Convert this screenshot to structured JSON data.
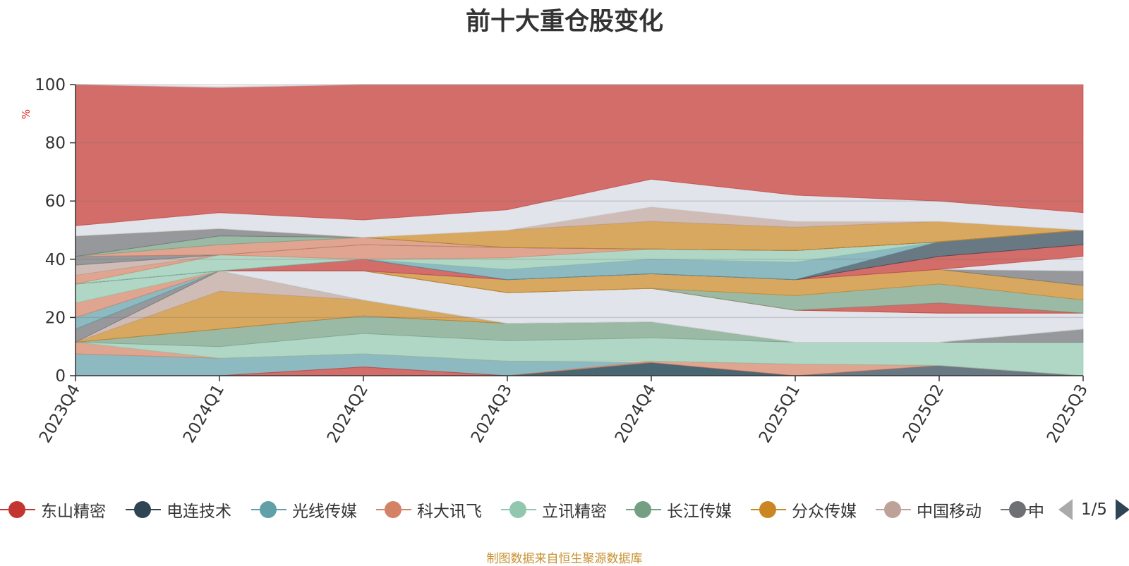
{
  "title": "前十大重仓股变化",
  "footer": "制图数据来自恒生聚源数据库",
  "pager": {
    "text": "1/5"
  },
  "legend": [
    {
      "name": "东山精密",
      "color": "#c23531"
    },
    {
      "name": "电连技术",
      "color": "#2f4554"
    },
    {
      "name": "光线传媒",
      "color": "#61a0a8"
    },
    {
      "name": "科大讯飞",
      "color": "#d48265"
    },
    {
      "name": "立讯精密",
      "color": "#91c7ae"
    },
    {
      "name": "长江传媒",
      "color": "#749f83"
    },
    {
      "name": "分众传媒",
      "color": "#ca8622"
    },
    {
      "name": "中国移动",
      "color": "#bda29a"
    },
    {
      "name": "中",
      "color": "#6e7074"
    }
  ],
  "chart_data": {
    "type": "area",
    "stacked": true,
    "title": "前十大重仓股变化",
    "ylabel": "%",
    "ylim": [
      0,
      100
    ],
    "yticks": [
      0,
      20,
      40,
      60,
      80,
      100
    ],
    "categories": [
      "2023Q4",
      "2024Q1",
      "2024Q2",
      "2024Q3",
      "2024Q4",
      "2025Q1",
      "2025Q2",
      "2025Q3"
    ],
    "bands": [
      {
        "color": "#61a0a8",
        "bottom": [
          0,
          0,
          3,
          0,
          0,
          0,
          0,
          0
        ],
        "top": [
          7.5,
          6,
          7.5,
          5,
          4.5,
          0,
          0,
          0
        ]
      },
      {
        "color": "#c23531",
        "bottom": [
          0,
          0,
          0,
          0,
          0,
          0,
          0,
          0
        ],
        "top": [
          0,
          0,
          3,
          0,
          0,
          0,
          0,
          0
        ]
      },
      {
        "color": "#2f4554",
        "bottom": [
          0,
          0,
          0,
          0,
          0,
          0,
          0,
          0
        ],
        "top": [
          0,
          0,
          0,
          0,
          4.5,
          0,
          3.5,
          0
        ]
      },
      {
        "color": "#d48265",
        "bottom": [
          0,
          0,
          0,
          0,
          4.5,
          0,
          3.5,
          0
        ],
        "top": [
          0,
          0,
          0,
          0,
          5,
          4,
          3.5,
          0
        ]
      },
      {
        "color": "#d48265",
        "bottom": [
          7.5,
          6,
          7.5,
          5,
          5,
          4,
          3.5,
          0
        ],
        "top": [
          11.5,
          6,
          7.5,
          5,
          5,
          4,
          3.5,
          0
        ]
      },
      {
        "color": "#91c7ae",
        "bottom": [
          11.5,
          6,
          7.5,
          5,
          5,
          4,
          3.5,
          0
        ],
        "top": [
          11.5,
          10,
          14.5,
          12,
          13,
          11.5,
          11.5,
          11.5
        ]
      },
      {
        "color": "#749f83",
        "bottom": [
          11.5,
          10,
          14.5,
          12,
          13,
          11.5,
          11.5,
          11.5
        ],
        "top": [
          11.5,
          16,
          20.5,
          18,
          18.5,
          11.5,
          11.5,
          11.5
        ]
      },
      {
        "color": "#6e7074",
        "bottom": [
          11.5,
          16,
          20.5,
          18,
          18.5,
          11.5,
          11.5,
          11.5
        ],
        "top": [
          11.5,
          16,
          20.5,
          18,
          18.5,
          11.5,
          11.5,
          16
        ]
      },
      {
        "color": "#ca8622",
        "bottom": [
          11.5,
          16,
          20.5,
          18,
          18.5,
          11.5,
          11.5,
          16
        ],
        "top": [
          11.5,
          29,
          26,
          18,
          18.5,
          11.5,
          11.5,
          16
        ]
      },
      {
        "color": "#bda29a",
        "bottom": [
          11.5,
          29,
          26,
          18,
          18.5,
          11.5,
          11.5,
          16
        ],
        "top": [
          11.5,
          36,
          26,
          18,
          18.5,
          11.5,
          11.5,
          16
        ]
      },
      {
        "color": "#6e7074",
        "bottom": [
          11.5,
          36,
          26,
          18,
          18.5,
          11.5,
          11.5,
          16
        ],
        "top": [
          16,
          36,
          26,
          18,
          18.5,
          11.5,
          11.5,
          16
        ]
      },
      {
        "color": "#61a0a8",
        "bottom": [
          16,
          36,
          26,
          18,
          18.5,
          11.5,
          11.5,
          16
        ],
        "top": [
          20,
          36,
          26,
          18,
          18.5,
          11.5,
          11.5,
          16
        ]
      },
      {
        "color": "#d48265",
        "bottom": [
          20,
          36,
          26,
          18,
          18.5,
          11.5,
          11.5,
          16
        ],
        "top": [
          25,
          36,
          26,
          18,
          18.5,
          11.5,
          11.5,
          16
        ]
      },
      {
        "color": "#91c7ae",
        "bottom": [
          25,
          36,
          26,
          18,
          18.5,
          11.5,
          11.5,
          16
        ],
        "top": [
          31.5,
          36,
          26,
          18,
          18.5,
          11.5,
          11.5,
          16
        ]
      },
      {
        "color": "#d5dbe3",
        "bottom": [
          31.5,
          36,
          26,
          18,
          18.5,
          11.5,
          11.5,
          16
        ],
        "top": [
          31.5,
          36,
          36,
          28.5,
          30,
          22.5,
          21.5,
          21.5
        ]
      },
      {
        "color": "#ca8622",
        "bottom": [
          31.5,
          36,
          36,
          28.5,
          30,
          22.5,
          21.5,
          21.5
        ],
        "top": [
          31.5,
          36,
          36,
          28.5,
          30,
          22.5,
          21.5,
          21.5
        ]
      },
      {
        "color": "#c23531",
        "bottom": [
          31.5,
          36,
          36,
          28.5,
          30,
          22.5,
          21.5,
          21.5
        ],
        "top": [
          31.5,
          36,
          36,
          28.5,
          30,
          22.5,
          25,
          21.5
        ]
      },
      {
        "color": "#749f83",
        "bottom": [
          31.5,
          36,
          36,
          28.5,
          30,
          22.5,
          25,
          21.5
        ],
        "top": [
          31.5,
          36,
          36,
          28.5,
          30,
          27.5,
          31.5,
          26
        ]
      },
      {
        "color": "#ca8622",
        "bottom": [
          31.5,
          36,
          36,
          28.5,
          30,
          27.5,
          31.5,
          26
        ],
        "top": [
          31.5,
          36,
          36,
          33,
          35,
          33,
          36.5,
          31
        ]
      },
      {
        "color": "#6e7074",
        "bottom": [
          31.5,
          36,
          36,
          33,
          35,
          33,
          36.5,
          31
        ],
        "top": [
          31.5,
          36,
          36,
          33,
          35,
          33,
          36.5,
          36
        ]
      },
      {
        "color": "#d5dbe3",
        "bottom": [
          31.5,
          36,
          36,
          33,
          35,
          33,
          36.5,
          36
        ],
        "top": [
          31.5,
          36,
          36,
          33,
          35,
          33,
          36.5,
          41
        ]
      },
      {
        "color": "#c23531",
        "bottom": [
          31.5,
          36,
          36,
          33,
          35,
          33,
          36.5,
          41
        ],
        "top": [
          31.5,
          36,
          40,
          33,
          35,
          33,
          41,
          45
        ]
      },
      {
        "color": "#2f4554",
        "bottom": [
          31.5,
          36,
          40,
          33,
          35,
          33,
          41,
          45
        ],
        "top": [
          31.5,
          36,
          40,
          33,
          35,
          33,
          46,
          50
        ]
      },
      {
        "color": "#61a0a8",
        "bottom": [
          31.5,
          36,
          40,
          33,
          35,
          33,
          46,
          50
        ],
        "top": [
          31.5,
          36,
          40,
          36.5,
          40,
          39,
          46,
          50
        ]
      },
      {
        "color": "#91c7ae",
        "bottom": [
          31.5,
          36,
          40,
          36.5,
          40,
          39,
          46,
          50
        ],
        "top": [
          31.5,
          41.5,
          40,
          40.5,
          43.5,
          43,
          46,
          50
        ]
      },
      {
        "color": "#d48265",
        "bottom": [
          31.5,
          41.5,
          40,
          40.5,
          43.5,
          43,
          46,
          50
        ],
        "top": [
          34.5,
          41.5,
          45,
          44,
          43.5,
          43,
          46,
          50
        ]
      },
      {
        "color": "#bda29a",
        "bottom": [
          34.5,
          41.5,
          45,
          44,
          43.5,
          43,
          46,
          50
        ],
        "top": [
          38,
          41.5,
          45,
          44,
          43.5,
          43,
          46,
          50
        ]
      },
      {
        "color": "#6e7074",
        "bottom": [
          38,
          41.5,
          45,
          44,
          43.5,
          43,
          46,
          50
        ],
        "top": [
          41,
          41.5,
          45,
          44,
          43.5,
          43,
          46,
          50
        ]
      },
      {
        "color": "#d48265",
        "bottom": [
          41,
          41.5,
          45,
          44,
          43.5,
          43,
          46,
          50
        ],
        "top": [
          41,
          45,
          47.5,
          44,
          43.5,
          43,
          46,
          50
        ]
      },
      {
        "color": "#749f83",
        "bottom": [
          41,
          45,
          47.5,
          44,
          43.5,
          43,
          46,
          50
        ],
        "top": [
          41,
          48,
          47.5,
          44,
          43.5,
          43,
          46,
          50
        ]
      },
      {
        "color": "#6e7074",
        "bottom": [
          41,
          48,
          47.5,
          44,
          43.5,
          43,
          46,
          50
        ],
        "top": [
          48,
          50.5,
          47.5,
          44,
          43.5,
          43,
          46,
          50
        ]
      },
      {
        "color": "#ca8622",
        "bottom": [
          48,
          50.5,
          47.5,
          44,
          43.5,
          43,
          46,
          50
        ],
        "top": [
          48,
          50.5,
          47.5,
          50,
          53,
          51,
          53,
          50
        ]
      },
      {
        "color": "#bda29a",
        "bottom": [
          48,
          50.5,
          47.5,
          50,
          53,
          51,
          53,
          50
        ],
        "top": [
          48,
          50.5,
          47.5,
          50,
          58,
          53,
          53,
          50
        ]
      },
      {
        "color": "#d5dbe3",
        "bottom": [
          48,
          50.5,
          47.5,
          50,
          58,
          53,
          53,
          50
        ],
        "top": [
          51.5,
          56,
          53.5,
          57,
          67.5,
          62,
          60,
          56
        ]
      },
      {
        "color": "#c23531",
        "bottom": [
          51.5,
          56,
          53.5,
          57,
          67.5,
          62,
          60,
          56
        ],
        "top": [
          100,
          99,
          100,
          100,
          100,
          100,
          100,
          100
        ]
      },
      {
        "color": "#d5dbe3",
        "bottom": [
          100,
          99,
          100,
          100,
          100,
          100,
          100,
          100
        ],
        "top": [
          100,
          99.5,
          100,
          100,
          100,
          100,
          100,
          100
        ]
      }
    ]
  }
}
